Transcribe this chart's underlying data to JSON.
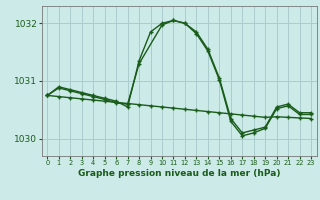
{
  "title": "Graphe pression niveau de la mer (hPa)",
  "background_color": "#cceae7",
  "grid_color": "#aacccc",
  "line_color": "#1a5c1a",
  "xlim": [
    -0.5,
    23.5
  ],
  "ylim": [
    1029.7,
    1032.3
  ],
  "series": [
    {
      "x": [
        0,
        1,
        2,
        3,
        4,
        5,
        6,
        7,
        8,
        9,
        10,
        11,
        12,
        13,
        14,
        15,
        16,
        17,
        18,
        19,
        20,
        21,
        22,
        23
      ],
      "y": [
        1030.75,
        1030.9,
        1030.85,
        1030.8,
        1030.75,
        1030.7,
        1030.65,
        1030.55,
        1031.35,
        1031.85,
        1032.0,
        1032.05,
        1032.0,
        1031.85,
        1031.55,
        1031.05,
        1030.35,
        1030.1,
        1030.15,
        1030.2,
        1030.55,
        1030.6,
        1030.45,
        1030.45
      ]
    },
    {
      "x": [
        0,
        1,
        2,
        3,
        4,
        5,
        6,
        7,
        8,
        10,
        11,
        12,
        13,
        14,
        15,
        16,
        17,
        18,
        19,
        20,
        21,
        22,
        23
      ],
      "y": [
        1030.75,
        1030.88,
        1030.83,
        1030.78,
        1030.73,
        1030.68,
        1030.62,
        1030.6,
        1031.3,
        1031.97,
        1032.05,
        1032.0,
        1031.82,
        1031.52,
        1031.02,
        1030.3,
        1030.05,
        1030.1,
        1030.18,
        1030.52,
        1030.57,
        1030.42,
        1030.42
      ]
    },
    {
      "x": [
        0,
        1,
        2,
        3,
        4,
        5,
        6,
        7,
        8,
        9,
        10,
        11,
        12,
        13,
        14,
        15,
        16,
        17,
        18,
        19,
        20,
        21,
        22,
        23
      ],
      "y": [
        1030.75,
        1030.73,
        1030.71,
        1030.69,
        1030.67,
        1030.65,
        1030.63,
        1030.61,
        1030.59,
        1030.57,
        1030.55,
        1030.53,
        1030.51,
        1030.49,
        1030.47,
        1030.45,
        1030.43,
        1030.41,
        1030.39,
        1030.37,
        1030.38,
        1030.37,
        1030.36,
        1030.35
      ]
    }
  ],
  "xticks": [
    0,
    1,
    2,
    3,
    4,
    5,
    6,
    7,
    8,
    9,
    10,
    11,
    12,
    13,
    14,
    15,
    16,
    17,
    18,
    19,
    20,
    21,
    22,
    23
  ],
  "yticks": [
    1030,
    1031,
    1032
  ],
  "xtick_fontsize": 4.8,
  "ytick_fontsize": 6.5,
  "xlabel_fontsize": 6.5,
  "linewidth": 1.0,
  "markersize": 3.5,
  "markeredgewidth": 1.0
}
